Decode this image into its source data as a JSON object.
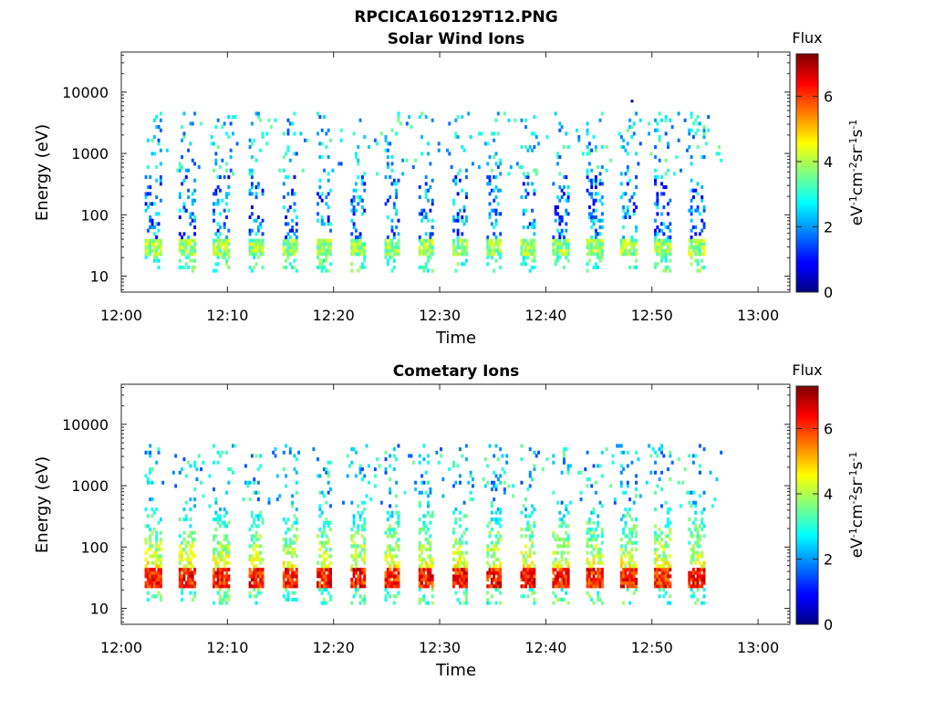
{
  "figure_title": "RPCICA160129T12.PNG",
  "chart_data": [
    {
      "type": "heatmap",
      "title": "Solar Wind Ions",
      "xlabel": "Time",
      "ylabel": "Energy (eV)",
      "x_ticks": [
        "12:00",
        "12:10",
        "12:20",
        "12:30",
        "12:40",
        "12:50",
        "13:00"
      ],
      "xlim": [
        "12:00",
        "13:03"
      ],
      "y_ticks": [
        "10",
        "100",
        "1000",
        "10000"
      ],
      "y_scale": "log",
      "ylim": [
        5.5,
        45000
      ],
      "colorbar": {
        "label": "Flux",
        "unit_base": [
          "eV",
          "cm",
          "sr",
          "s"
        ],
        "unit_exp": [
          "-1",
          "-2",
          "-1",
          "-1"
        ],
        "ticks": [
          "0",
          "2",
          "4",
          "6"
        ],
        "range": [
          0,
          7.3
        ],
        "colormap": "jet"
      },
      "scans": {
        "start_minute": 2.2,
        "end_minute": 56.6,
        "period_minutes": 3.2,
        "low_band_eV": [
          20,
          40
        ],
        "low_band_flux": 3.8,
        "sparse_high_energy_flux": 2.5,
        "isolated_point": {
          "time": "12:48",
          "energy_eV": 7000,
          "flux": 0.2
        }
      }
    },
    {
      "type": "heatmap",
      "title": "Cometary Ions",
      "xlabel": "Time",
      "ylabel": "Energy (eV)",
      "x_ticks": [
        "12:00",
        "12:10",
        "12:20",
        "12:30",
        "12:40",
        "12:50",
        "13:00"
      ],
      "xlim": [
        "12:00",
        "13:03"
      ],
      "y_ticks": [
        "10",
        "100",
        "1000",
        "10000"
      ],
      "y_scale": "log",
      "ylim": [
        5.5,
        45000
      ],
      "colorbar": {
        "label": "Flux",
        "unit_base": [
          "eV",
          "cm",
          "sr",
          "s"
        ],
        "unit_exp": [
          "-1",
          "-2",
          "-1",
          "-1"
        ],
        "ticks": [
          "0",
          "2",
          "4",
          "6"
        ],
        "range": [
          0,
          7.3
        ],
        "colormap": "jet"
      },
      "scans": {
        "start_minute": 2.2,
        "end_minute": 56.6,
        "period_minutes": 3.2,
        "low_band_eV": [
          20,
          45
        ],
        "low_band_flux": 6.2,
        "mid_flux": 4.5,
        "sparse_high_energy_flux": 2.5
      }
    }
  ]
}
